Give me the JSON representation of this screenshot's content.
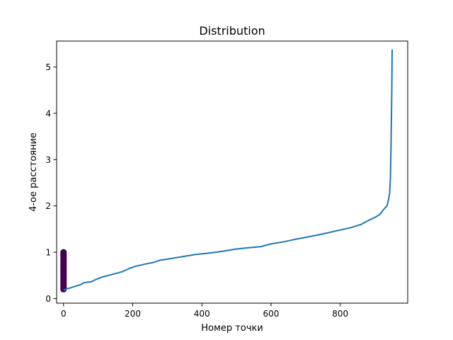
{
  "chart_data": {
    "type": "line",
    "title": "Distribution",
    "xlabel": "Номер точки",
    "ylabel": "4-ое расстояние",
    "xlim": [
      -20,
      995
    ],
    "ylim": [
      -0.1,
      5.56
    ],
    "xticks": [
      0,
      200,
      400,
      600,
      800
    ],
    "yticks": [
      0,
      1,
      2,
      3,
      4,
      5
    ],
    "grid": false,
    "series": [
      {
        "color": "#1f77b4",
        "points": [
          [
            0,
            0.18
          ],
          [
            10,
            0.21
          ],
          [
            20,
            0.23
          ],
          [
            40,
            0.28
          ],
          [
            50,
            0.3
          ],
          [
            55,
            0.33
          ],
          [
            65,
            0.35
          ],
          [
            80,
            0.36
          ],
          [
            90,
            0.4
          ],
          [
            110,
            0.46
          ],
          [
            130,
            0.5
          ],
          [
            150,
            0.54
          ],
          [
            170,
            0.58
          ],
          [
            190,
            0.65
          ],
          [
            210,
            0.7
          ],
          [
            240,
            0.75
          ],
          [
            260,
            0.78
          ],
          [
            280,
            0.83
          ],
          [
            300,
            0.85
          ],
          [
            340,
            0.9
          ],
          [
            380,
            0.95
          ],
          [
            420,
            0.98
          ],
          [
            460,
            1.02
          ],
          [
            500,
            1.07
          ],
          [
            540,
            1.1
          ],
          [
            570,
            1.12
          ],
          [
            600,
            1.18
          ],
          [
            640,
            1.23
          ],
          [
            670,
            1.28
          ],
          [
            700,
            1.32
          ],
          [
            740,
            1.38
          ],
          [
            770,
            1.43
          ],
          [
            800,
            1.48
          ],
          [
            830,
            1.53
          ],
          [
            860,
            1.6
          ],
          [
            880,
            1.68
          ],
          [
            900,
            1.75
          ],
          [
            915,
            1.82
          ],
          [
            925,
            1.92
          ],
          [
            935,
            2.0
          ],
          [
            940,
            2.15
          ],
          [
            943,
            2.3
          ],
          [
            945,
            2.6
          ],
          [
            947,
            3.4
          ],
          [
            949,
            4.5
          ],
          [
            950,
            5.38
          ]
        ]
      }
    ],
    "scatter": {
      "x": 0,
      "y_min": 0.2,
      "y_max": 1.0,
      "color": "#440154"
    }
  }
}
